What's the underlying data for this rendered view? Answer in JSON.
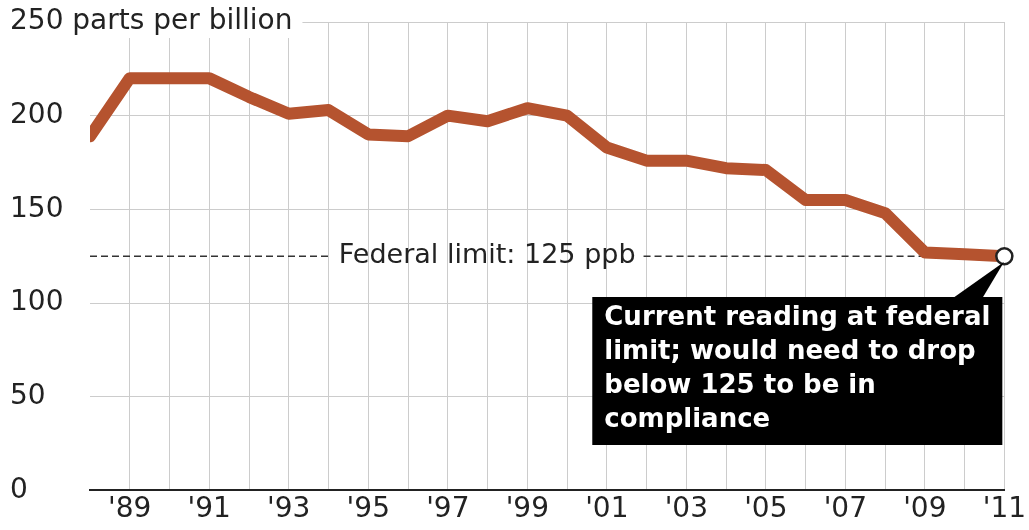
{
  "chart_data": {
    "type": "line",
    "x": [
      1988,
      1989,
      1990,
      1991,
      1992,
      1993,
      1994,
      1995,
      1996,
      1997,
      1998,
      1999,
      2000,
      2001,
      2002,
      2003,
      2004,
      2005,
      2006,
      2007,
      2008,
      2009,
      2010,
      2011
    ],
    "series": [
      {
        "color": "#b5532f",
        "values": [
          189,
          220,
          220,
          220,
          210,
          201,
          203,
          190,
          189,
          200,
          197,
          204,
          200,
          183,
          176,
          176,
          172,
          171,
          155,
          155,
          148,
          127,
          126,
          125
        ]
      }
    ],
    "xlim": [
      1988,
      2011
    ],
    "xticks": [
      {
        "value": 1989,
        "label": "'89"
      },
      {
        "value": 1990,
        "label": null
      },
      {
        "value": 1991,
        "label": "'91"
      },
      {
        "value": 1992,
        "label": null
      },
      {
        "value": 1993,
        "label": "'93"
      },
      {
        "value": 1994,
        "label": null
      },
      {
        "value": 1995,
        "label": "'95"
      },
      {
        "value": 1996,
        "label": null
      },
      {
        "value": 1997,
        "label": "'97"
      },
      {
        "value": 1998,
        "label": null
      },
      {
        "value": 1999,
        "label": "'99"
      },
      {
        "value": 2000,
        "label": null
      },
      {
        "value": 2001,
        "label": "'01"
      },
      {
        "value": 2002,
        "label": null
      },
      {
        "value": 2003,
        "label": "'03"
      },
      {
        "value": 2004,
        "label": null
      },
      {
        "value": 2005,
        "label": "'05"
      },
      {
        "value": 2006,
        "label": null
      },
      {
        "value": 2007,
        "label": "'07"
      },
      {
        "value": 2008,
        "label": null
      },
      {
        "value": 2009,
        "label": "'09"
      },
      {
        "value": 2010,
        "label": null
      },
      {
        "value": 2011,
        "label": "'11"
      }
    ],
    "ylim": [
      0,
      250
    ],
    "yticks": [
      0,
      50,
      100,
      150,
      200,
      {
        "value": 250,
        "label": "250 parts per billion"
      }
    ],
    "grid": true,
    "legend": false,
    "marker": "none",
    "ref_lines": [
      {
        "axis": "y",
        "value": 125,
        "label": "Federal limit: 125 ppb",
        "color": "#333333",
        "line_style": "dashed"
      }
    ],
    "annotations": [
      {
        "text": "Current reading at federal limit; would need to drop below 125 to be in compliance",
        "x": 2011,
        "y": 125
      }
    ]
  }
}
